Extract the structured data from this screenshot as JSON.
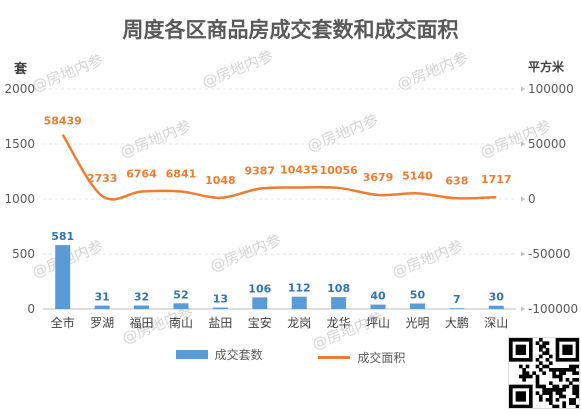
{
  "watermark_text": "@房地内参",
  "legend": {
    "bar_label": "成交套数",
    "line_label": "成交面积"
  },
  "colors": {
    "bar": "#5b9bd5",
    "line": "#ed7d31",
    "bar_label": "#2e75b6",
    "line_label": "#ed7d31"
  },
  "chart_data": {
    "type": "bar",
    "title": "周度各区商品房成交套数和成交面积",
    "ylabel": "套",
    "y2label": "平方米",
    "categories": [
      "全市",
      "罗湖",
      "福田",
      "南山",
      "盐田",
      "宝安",
      "龙岗",
      "龙华",
      "坪山",
      "光明",
      "大鹏",
      "深山"
    ],
    "series": [
      {
        "name": "成交套数",
        "type": "bar",
        "axis": "left",
        "values": [
          581,
          31,
          32,
          52,
          13,
          106,
          112,
          108,
          40,
          50,
          7,
          30
        ]
      },
      {
        "name": "成交面积",
        "type": "line",
        "axis": "right",
        "values": [
          58439,
          2733,
          6764,
          6841,
          1048,
          9387,
          10435,
          10056,
          3679,
          5140,
          638,
          1717
        ]
      }
    ],
    "ylim": [
      0,
      2000
    ],
    "yticks": [
      0,
      500,
      1000,
      1500,
      2000
    ],
    "y2lim": [
      -100000,
      100000
    ],
    "y2ticks": [
      -100000,
      -50000,
      0,
      50000,
      100000
    ],
    "grid": true,
    "legend_position": "bottom"
  }
}
